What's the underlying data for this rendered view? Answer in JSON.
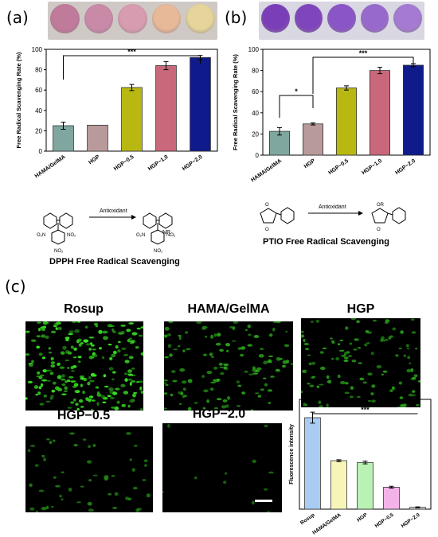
{
  "panels": {
    "a": {
      "letter": "(a)",
      "caption": "DPPH Free Radical Scavenging",
      "reaction_label": "Antioxidant",
      "product_group": "NR"
    },
    "b": {
      "letter": "(b)",
      "caption": "PTIO Free Radical Scavenging",
      "reaction_label": "Antioxidant",
      "product_group": "OR"
    },
    "c": {
      "letter": "(c)"
    }
  },
  "micrographs": [
    {
      "title": "Rosup",
      "density": 1.0
    },
    {
      "title": "HAMA/GelMA",
      "density": 0.55
    },
    {
      "title": "HGP",
      "density": 0.5
    },
    {
      "title": "HGP−0.5",
      "density": 0.22
    },
    {
      "title": "HGP−2.0",
      "density": 0.03
    }
  ],
  "colors": {
    "teal": "#7fa7a0",
    "rose": "#b99a9a",
    "olive": "#b9b813",
    "pink": "#c8687a",
    "navy": "#0f1b8a",
    "well_a": [
      "#c07a9a",
      "#c98aa8",
      "#d79cb0",
      "#e7b998",
      "#e5d59a"
    ],
    "well_b": [
      "#7a3fb8",
      "#7f45bc",
      "#8a55c6",
      "#9869cc",
      "#a57ad2"
    ],
    "fluor": [
      "#a9cdf2",
      "#f7f5b8",
      "#b9f2b4",
      "#f4b3e8",
      "#d8d8d8"
    ]
  },
  "chart_data": [
    {
      "type": "bar",
      "categories": [
        "HAMA/GelMA",
        "HGP",
        "HGP−0.5",
        "HGP−1.0",
        "HGP−2.0"
      ],
      "values": [
        25,
        25.5,
        62.5,
        84,
        92
      ],
      "errors": [
        3.5,
        0,
        3,
        4,
        2
      ],
      "ylabel": "Free Radical Scavenging Rate (%)",
      "ylim": [
        0,
        100
      ],
      "yticks": [
        0,
        20,
        40,
        60,
        80,
        100
      ],
      "significance": [
        {
          "from": 0,
          "to": 4,
          "label": "***"
        }
      ]
    },
    {
      "type": "bar",
      "categories": [
        "HAMA/GelMA",
        "HGP",
        "HGP−0.5",
        "HGP−1.0",
        "HGP−2.0"
      ],
      "values": [
        22.5,
        29.5,
        63.5,
        80,
        85
      ],
      "errors": [
        3.5,
        1,
        2,
        3,
        1.5
      ],
      "ylabel": "Free Radical Scavenging Rate (%)",
      "ylim": [
        0,
        100
      ],
      "yticks": [
        0,
        20,
        40,
        60,
        80,
        100
      ],
      "significance": [
        {
          "from": 0,
          "to": 1,
          "label": "*"
        },
        {
          "from": 1,
          "to": 4,
          "label": "***"
        }
      ]
    },
    {
      "type": "bar",
      "categories": [
        "Rosup",
        "HAMA/GelMA",
        "HGP",
        "HGP−0.5",
        "HGP−2.0"
      ],
      "values": [
        1.0,
        0.53,
        0.51,
        0.24,
        0.02
      ],
      "errors": [
        0.06,
        0.01,
        0.015,
        0.01,
        0.005
      ],
      "ylabel": "Fluorescence intensity",
      "ylim": [
        0,
        1.2
      ],
      "significance": [
        {
          "from": 0,
          "to": 4,
          "label": "***"
        }
      ]
    }
  ]
}
